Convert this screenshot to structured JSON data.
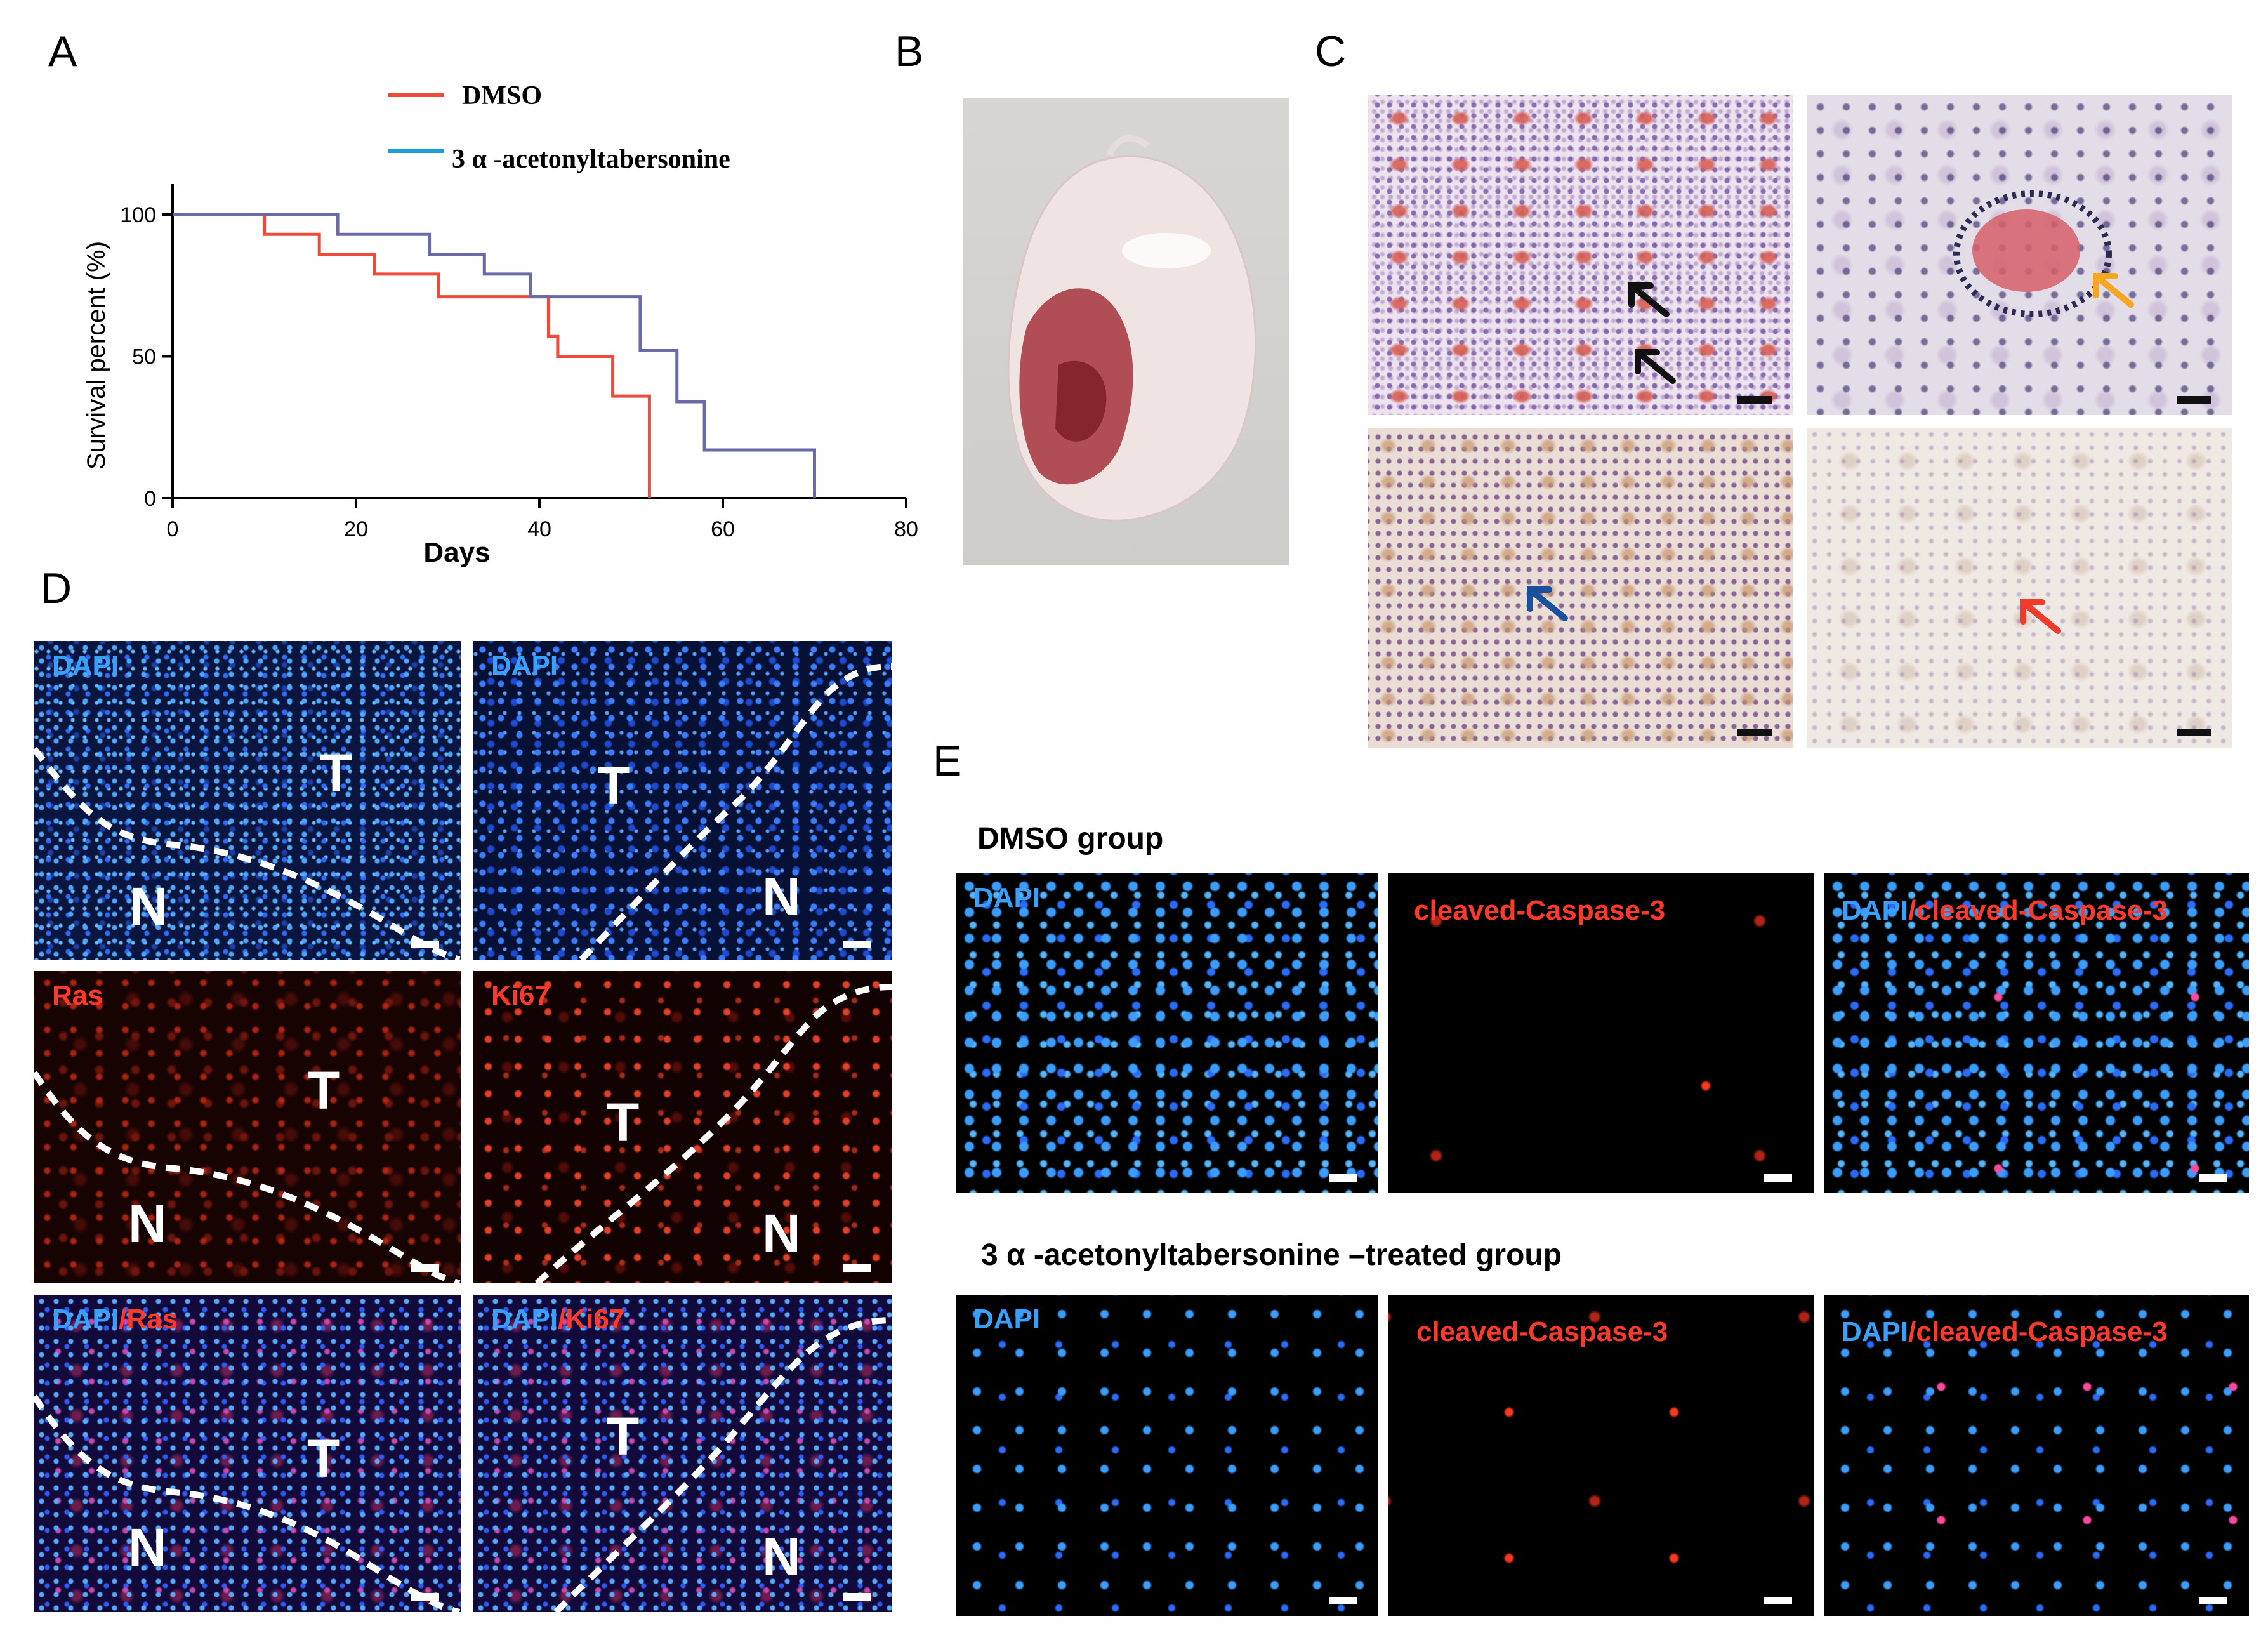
{
  "panels": {
    "A": "A",
    "B": "B",
    "C": "C",
    "D": "D",
    "E": "E"
  },
  "chart_data": {
    "type": "line",
    "step": true,
    "xlabel": "Days",
    "ylabel": "Survival percent (%)",
    "xlim": [
      0,
      80
    ],
    "ylim": [
      0,
      100
    ],
    "xticks": [
      0,
      20,
      40,
      60,
      80
    ],
    "yticks": [
      0,
      50,
      100
    ],
    "legend_position": "top",
    "series": [
      {
        "name": "DMSO",
        "color": "#ef4b3c",
        "x": [
          0,
          10,
          16,
          22,
          29,
          41,
          42,
          48,
          52
        ],
        "y": [
          100,
          93,
          86,
          79,
          71,
          57,
          50,
          36,
          0
        ]
      },
      {
        "name": "3 α -acetonyltabersonine",
        "legend_color": "#1f9bd7",
        "color": "#6a6aa6",
        "x": [
          0,
          18,
          28,
          34,
          39,
          51,
          55,
          58,
          70
        ],
        "y": [
          100,
          93,
          86,
          79,
          71,
          52,
          34,
          17,
          0
        ]
      }
    ]
  },
  "panelD": {
    "images": [
      {
        "title": "DAPI",
        "title_color": "#3aa0ff",
        "title2": ""
      },
      {
        "title": "DAPI",
        "title_color": "#3aa0ff",
        "title2": ""
      },
      {
        "title": "Ras",
        "title_color": "#ff3a2a",
        "title2": ""
      },
      {
        "title": "Ki67",
        "title_color": "#ff3a2a",
        "title2": ""
      },
      {
        "title": "DAPI",
        "title_color": "#3aa0ff",
        "title2": "/Ras"
      },
      {
        "title": "DAPI",
        "title_color": "#3aa0ff",
        "title2": "/Ki67"
      }
    ],
    "T": "T",
    "N": "N"
  },
  "panelE": {
    "group1": "DMSO group",
    "group2": "3 α -acetonyltabersonine –treated  group",
    "dapi": "DAPI",
    "casp": "cleaved-Caspase-3",
    "merge_a": "DAPI",
    "merge_b": "/cleaved-Caspase-3"
  }
}
